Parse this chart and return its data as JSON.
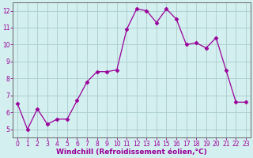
{
  "x": [
    0,
    1,
    2,
    3,
    4,
    5,
    6,
    7,
    8,
    9,
    10,
    11,
    12,
    13,
    14,
    15,
    16,
    17,
    18,
    19,
    20,
    21,
    22,
    23
  ],
  "y": [
    6.5,
    5.0,
    6.2,
    5.3,
    5.6,
    5.6,
    6.7,
    7.8,
    8.4,
    8.4,
    8.5,
    10.9,
    12.1,
    12.0,
    11.3,
    12.1,
    11.5,
    10.0,
    10.1,
    9.8,
    10.4,
    8.5,
    6.6,
    6.6
  ],
  "line_color": "#990099",
  "marker": "D",
  "marker_size": 2.5,
  "bg_color": "#d4efef",
  "grid_color": "#aacccc",
  "xlabel": "Windchill (Refroidissement éolien,°C)",
  "xlabel_color": "#990099",
  "tick_color": "#990099",
  "spine_color": "#666666",
  "ylim": [
    4.5,
    12.5
  ],
  "xlim": [
    -0.5,
    23.5
  ],
  "yticks": [
    5,
    6,
    7,
    8,
    9,
    10,
    11,
    12
  ],
  "xticks": [
    0,
    1,
    2,
    3,
    4,
    5,
    6,
    7,
    8,
    9,
    10,
    11,
    12,
    13,
    14,
    15,
    16,
    17,
    18,
    19,
    20,
    21,
    22,
    23
  ],
  "tick_fontsize": 5.5,
  "xlabel_fontsize": 6.5
}
